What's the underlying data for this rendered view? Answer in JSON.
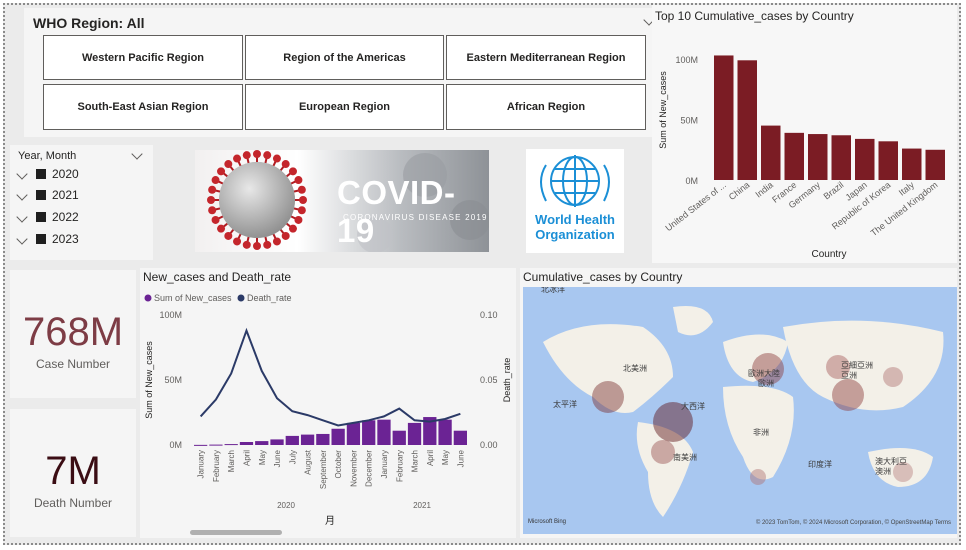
{
  "slicer_region": {
    "title": "WHO Region: All",
    "buttons": [
      "Western Pacific Region",
      "Region of the Americas",
      "Eastern Mediterranean Region",
      "South-East Asian Region",
      "European Region",
      "African Region"
    ]
  },
  "slicer_date": {
    "title": "Year, Month",
    "years": [
      "2020",
      "2021",
      "2022",
      "2023"
    ]
  },
  "banner": {
    "big": "COVID-19",
    "sub": "CORONAVIRUS DISEASE 2019"
  },
  "who_logo": {
    "line1": "World Health",
    "line2": "Organization"
  },
  "kpi": {
    "cases_value": "768M",
    "cases_label": "Case Number",
    "cases_color": "#7d3c45",
    "deaths_value": "7M",
    "deaths_label": "Death Number",
    "deaths_color": "#3b0d14"
  },
  "top10": {
    "title": "Top 10 Cumulative_cases by Country",
    "ylabel": "Sum of New_cases",
    "xlabel": "Country",
    "color": "#7b1c24"
  },
  "combo": {
    "title": "New_cases and Death_rate",
    "legend_bar": "Sum of New_cases",
    "legend_line": "Death_rate",
    "ylabel_left": "Sum of New_cases",
    "ylabel_right": "Death_rate",
    "xlabel": "月",
    "bar_color": "#6b2394",
    "line_color": "#2b3a67",
    "year_labels": [
      "2020",
      "2021"
    ]
  },
  "map": {
    "title": "Cumulative_cases by Country",
    "labels": [
      "北冰洋",
      "北美洲",
      "歐洲大陸",
      "歐洲",
      "亞細亞洲",
      "亞洲",
      "太平洋",
      "大西洋",
      "非洲",
      "南美洲",
      "印度洋",
      "澳大利亞",
      "澳洲"
    ],
    "logo": "Microsoft Bing",
    "attribution": "© 2023 TomTom, © 2024 Microsoft Corporation, © OpenStreetMap  Terms"
  },
  "chart_data": [
    {
      "type": "bar",
      "title": "Top 10 Cumulative_cases by Country",
      "xlabel": "Country",
      "ylabel": "Sum of New_cases",
      "categories": [
        "United States of ...",
        "China",
        "India",
        "France",
        "Germany",
        "Brazil",
        "Japan",
        "Republic of Korea",
        "Italy",
        "The United Kingdom"
      ],
      "values": [
        103,
        99,
        45,
        39,
        38,
        37,
        34,
        32,
        26,
        25
      ],
      "value_unit": "M",
      "yticks": [
        "0M",
        "50M",
        "100M"
      ],
      "ylim": [
        0,
        110
      ],
      "grid": false
    },
    {
      "type": "bar+line",
      "title": "New_cases and Death_rate",
      "xlabel": "月",
      "categories": [
        "January",
        "February",
        "March",
        "April",
        "May",
        "June",
        "July",
        "August",
        "September",
        "October",
        "November",
        "December",
        "January",
        "February",
        "March",
        "April",
        "May",
        "June"
      ],
      "series": [
        {
          "name": "Sum of New_cases",
          "axis": "left",
          "unit": "M",
          "values": [
            0.1,
            0.3,
            0.7,
            2.3,
            3.0,
            4.3,
            7.0,
            8.0,
            8.5,
            12.5,
            17.0,
            19.0,
            19.5,
            11.0,
            17.0,
            21.5,
            19.5,
            11.0
          ]
        },
        {
          "name": "Death_rate",
          "axis": "right",
          "values": [
            0.022,
            0.035,
            0.055,
            0.088,
            0.057,
            0.036,
            0.026,
            0.023,
            0.019,
            0.015,
            0.017,
            0.019,
            0.022,
            0.028,
            0.019,
            0.018,
            0.02,
            0.024
          ]
        }
      ],
      "yticks_left": [
        "0M",
        "50M",
        "100M"
      ],
      "ylim_left": [
        0,
        100
      ],
      "yticks_right": [
        "0.00",
        "0.05",
        "0.10"
      ],
      "ylim_right": [
        0,
        0.1
      ]
    }
  ]
}
